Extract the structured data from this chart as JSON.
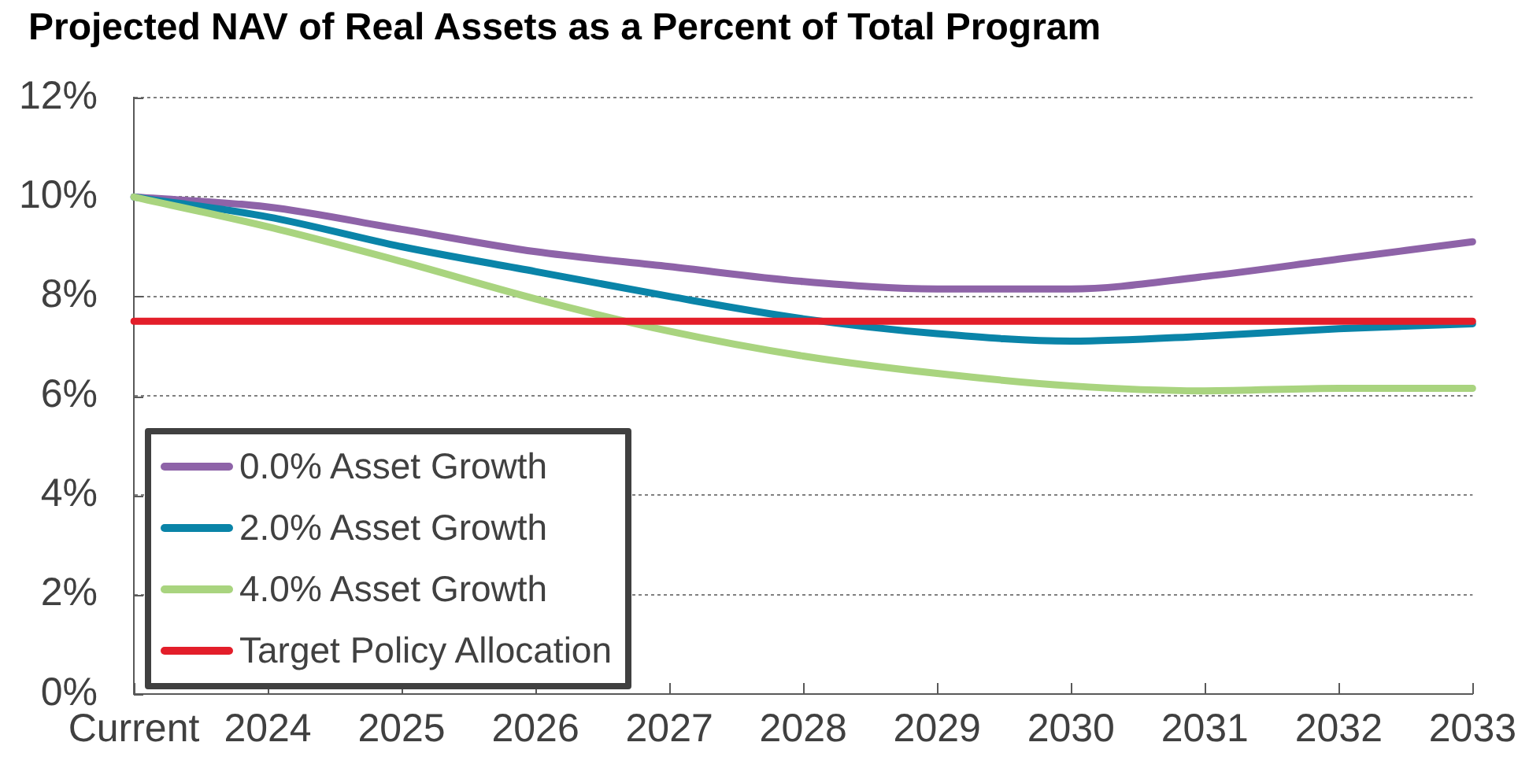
{
  "chart_data": {
    "type": "line",
    "title": "Projected NAV of Real Assets as a Percent of Total Program",
    "categories": [
      "Current",
      "2024",
      "2025",
      "2026",
      "2027",
      "2028",
      "2029",
      "2030",
      "2031",
      "2032",
      "2033"
    ],
    "series": [
      {
        "name": "0.0% Asset Growth",
        "color": "#8e63a8",
        "values": [
          10,
          9.8,
          9.35,
          8.9,
          8.6,
          8.3,
          8.15,
          8.15,
          8.4,
          8.75,
          9.1
        ]
      },
      {
        "name": "2.0% Asset Growth",
        "color": "#0a84a8",
        "values": [
          10,
          9.6,
          9.0,
          8.5,
          8.0,
          7.55,
          7.25,
          7.1,
          7.2,
          7.35,
          7.45
        ]
      },
      {
        "name": "4.0% Asset Growth",
        "color": "#a9d47f",
        "values": [
          10,
          9.4,
          8.7,
          7.95,
          7.3,
          6.8,
          6.45,
          6.2,
          6.1,
          6.15,
          6.15
        ]
      },
      {
        "name": "Target Policy Allocation",
        "color": "#e31e2a",
        "values": [
          7.5,
          7.5,
          7.5,
          7.5,
          7.5,
          7.5,
          7.5,
          7.5,
          7.5,
          7.5,
          7.5
        ]
      }
    ],
    "ylim": [
      0,
      12
    ],
    "yticks": [
      {
        "value": 0,
        "label": "0%"
      },
      {
        "value": 2,
        "label": "2%"
      },
      {
        "value": 4,
        "label": "4%"
      },
      {
        "value": 6,
        "label": "6%"
      },
      {
        "value": 8,
        "label": "8%"
      },
      {
        "value": 10,
        "label": "10%"
      },
      {
        "value": 12,
        "label": "12%"
      }
    ],
    "grid": "y",
    "legend": "bottom left",
    "marker": "none",
    "line_style": "solid"
  }
}
